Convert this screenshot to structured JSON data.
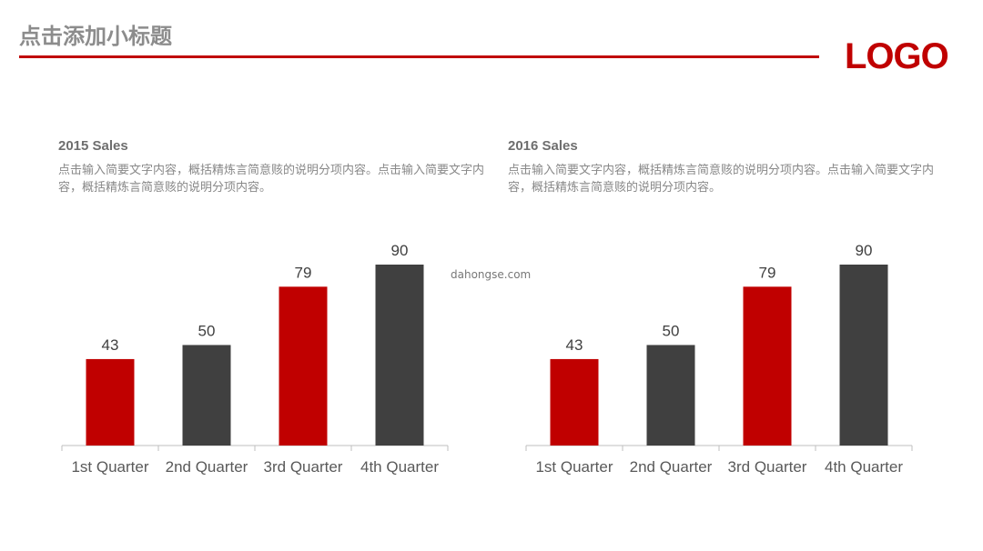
{
  "page": {
    "title": "点击添加小标题",
    "logo": "LOGO",
    "watermark": "dahongse.com",
    "accent_color": "#c00000",
    "dark_color": "#404040"
  },
  "panels": [
    {
      "title": "2015 Sales",
      "description": "点击输入简要文字内容，概括精炼言简意赅的说明分项内容。点击输入简要文字内容，概括精炼言简意赅的说明分项内容。"
    },
    {
      "title": "2016 Sales",
      "description": "点击输入简要文字内容，概括精炼言简意赅的说明分项内容。点击输入简要文字内容，概括精炼言简意赅的说明分项内容。"
    }
  ],
  "chart_data": [
    {
      "type": "bar",
      "title": "2015 Sales",
      "categories": [
        "1st Quarter",
        "2nd Quarter",
        "3rd Quarter",
        "4th Quarter"
      ],
      "values": [
        43,
        50,
        79,
        90
      ],
      "colors": [
        "#c00000",
        "#404040",
        "#c00000",
        "#404040"
      ],
      "ylim": [
        0,
        90
      ],
      "grid": false,
      "data_labels": true
    },
    {
      "type": "bar",
      "title": "2016 Sales",
      "categories": [
        "1st Quarter",
        "2nd Quarter",
        "3rd Quarter",
        "4th Quarter"
      ],
      "values": [
        43,
        50,
        79,
        90
      ],
      "colors": [
        "#c00000",
        "#404040",
        "#c00000",
        "#404040"
      ],
      "ylim": [
        0,
        90
      ],
      "grid": false,
      "data_labels": true
    }
  ]
}
